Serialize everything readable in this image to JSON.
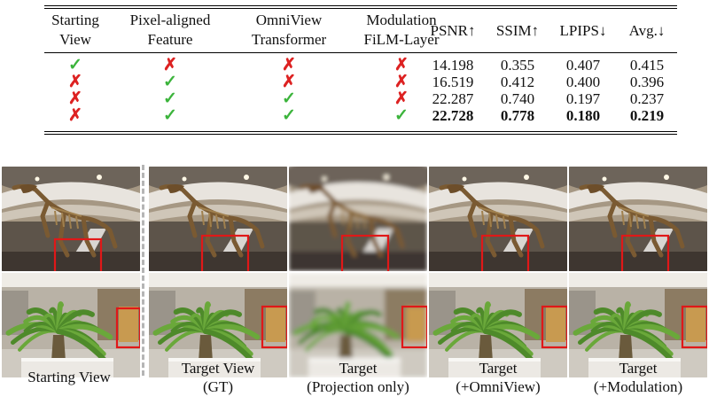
{
  "table": {
    "headers": [
      [
        "Starting",
        "View"
      ],
      [
        "Pixel-aligned",
        "Feature"
      ],
      [
        "OmniView",
        "Transformer"
      ],
      [
        "Modulation",
        "FiLM-Layer"
      ],
      [
        "PSNR↑"
      ],
      [
        "SSIM↑"
      ],
      [
        "LPIPS↓"
      ],
      [
        "Avg.↓"
      ]
    ],
    "rows": [
      {
        "marks": [
          "check",
          "cross",
          "cross",
          "cross"
        ],
        "psnr": "14.198",
        "ssim": "0.355",
        "lpips": "0.407",
        "avg": "0.415",
        "bold": false
      },
      {
        "marks": [
          "cross",
          "check",
          "cross",
          "cross"
        ],
        "psnr": "16.519",
        "ssim": "0.412",
        "lpips": "0.400",
        "avg": "0.396",
        "bold": false
      },
      {
        "marks": [
          "cross",
          "check",
          "check",
          "cross"
        ],
        "psnr": "22.287",
        "ssim": "0.740",
        "lpips": "0.197",
        "avg": "0.237",
        "bold": false
      },
      {
        "marks": [
          "cross",
          "check",
          "check",
          "check"
        ],
        "psnr": "22.728",
        "ssim": "0.778",
        "lpips": "0.180",
        "avg": "0.219",
        "bold": true
      }
    ],
    "symbols": {
      "check": "✓",
      "cross": "✗"
    }
  },
  "figure": {
    "captions": [
      [
        "Starting View"
      ],
      [
        "Target View",
        "(GT)"
      ],
      [
        "Target",
        "(Projection only)"
      ],
      [
        "Target",
        "(+OmniView)"
      ],
      [
        "Target",
        "(+Modulation)"
      ]
    ],
    "rows": [
      "dinosaur-skeleton-atrium",
      "palm-tree-lobby"
    ],
    "highlight_color": "#e01818"
  }
}
